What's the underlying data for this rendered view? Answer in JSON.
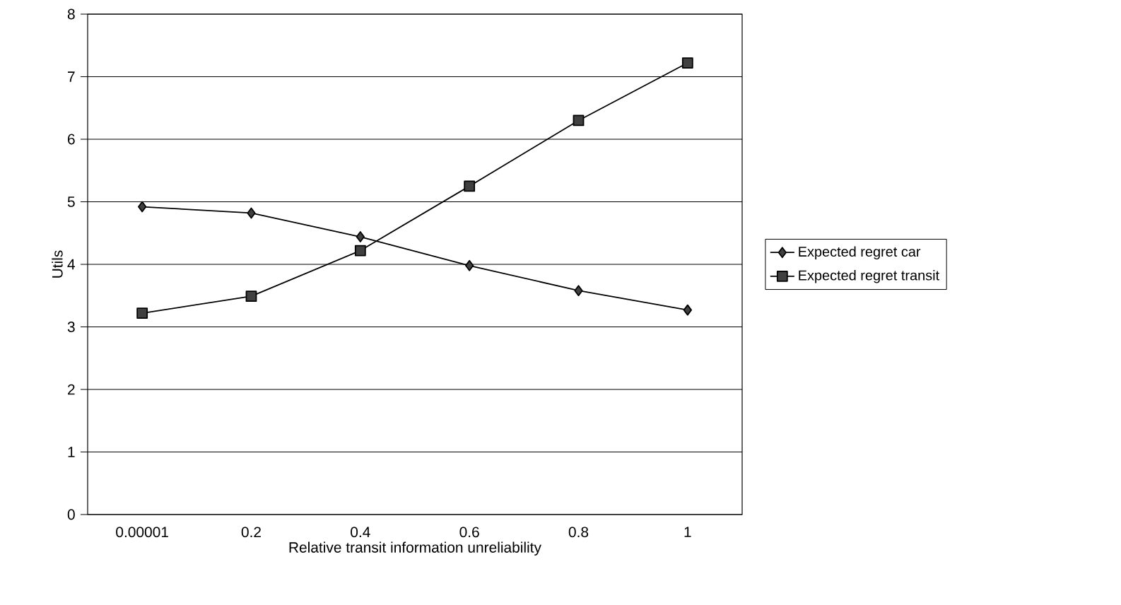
{
  "chart_data": {
    "type": "line",
    "xlabel": "Relative transit information unreliability",
    "ylabel": "Utils",
    "categories": [
      "0.00001",
      "0.2",
      "0.4",
      "0.6",
      "0.8",
      "1"
    ],
    "series": [
      {
        "name": "Expected regret car",
        "color": "#000000",
        "marker": "diamond",
        "values": [
          4.92,
          4.82,
          4.44,
          3.98,
          3.58,
          3.27
        ]
      },
      {
        "name": "Expected regret transit",
        "color": "#000000",
        "marker": "square",
        "values": [
          3.22,
          3.49,
          4.22,
          5.25,
          6.3,
          7.22
        ]
      }
    ],
    "ylim": [
      0,
      8
    ],
    "yticks": [
      0,
      1,
      2,
      3,
      4,
      5,
      6,
      7,
      8
    ],
    "grid": "y",
    "legend": "right",
    "line_style": "solid"
  }
}
